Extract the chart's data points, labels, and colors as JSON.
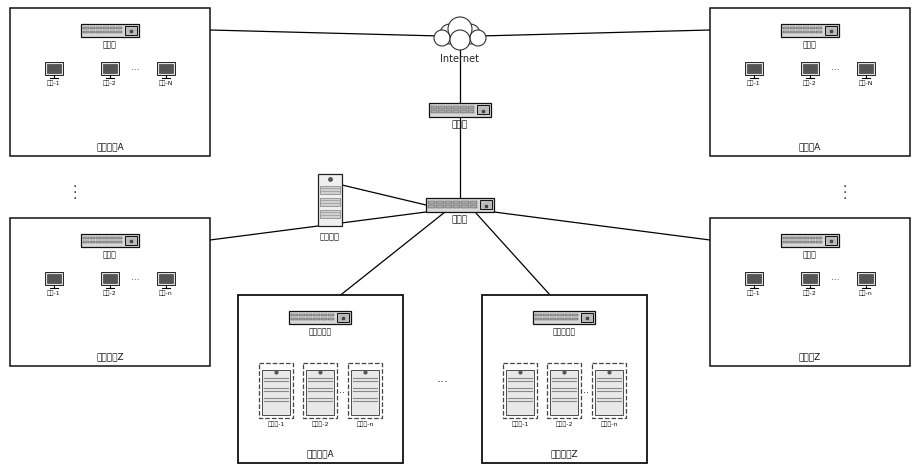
{
  "bg_color": "#ffffff",
  "internet_label": "Internet",
  "router_label": "路由器",
  "switch_label": "交换机",
  "control_label": "控制节点",
  "attack_a_label": "作战小队A",
  "attack_z_label": "作战小队Z",
  "judge_a_label": "裁判组A",
  "judge_z_label": "裁判组Z",
  "compute_a_label": "计算节点A",
  "compute_z_label": "计算节点Z",
  "virtual_switch_label": "虚拟交换机",
  "attack_members": [
    "队员-1",
    "队员-2",
    "队员-N"
  ],
  "judge_members": [
    "裁判-1",
    "裁判-2",
    "裁判-N"
  ],
  "attack_z_members": [
    "队员-1",
    "队员-2",
    "队员-n"
  ],
  "judge_z_members": [
    "裁判-1",
    "裁判-2",
    "裁判-n"
  ],
  "vm_labels_a": [
    "虚拟机-1",
    "虚拟机-2",
    "虚拟机-n"
  ],
  "vm_labels_z": [
    "虚拟机-1",
    "虚拟机-2",
    "虚拟机-n"
  ]
}
